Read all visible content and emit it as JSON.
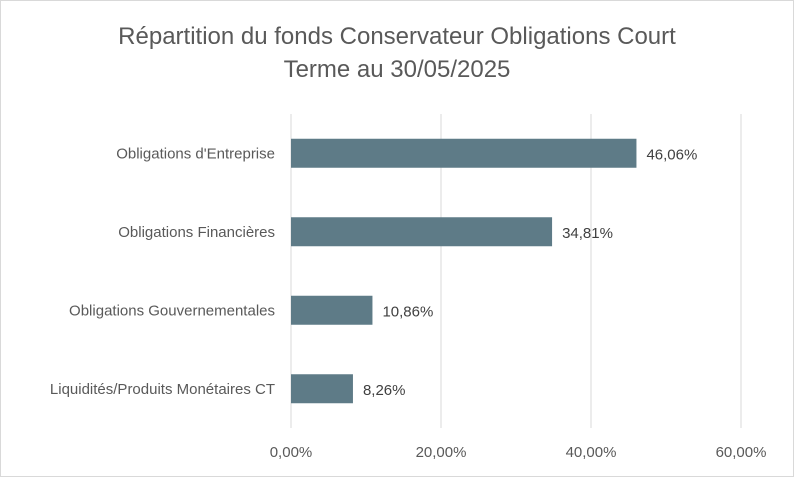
{
  "chart_data": {
    "type": "bar",
    "orientation": "horizontal",
    "title_lines": [
      "Répartition du fonds Conservateur Obligations Court",
      "Terme au 30/05/2025"
    ],
    "categories": [
      "Obligations d'Entreprise",
      "Obligations Financières",
      "Obligations Gouvernementales",
      "Liquidités/Produits Monétaires CT"
    ],
    "values": [
      46.06,
      34.81,
      10.86,
      8.26
    ],
    "value_labels": [
      "46,06%",
      "34,81%",
      "10,86%",
      "8,26%"
    ],
    "xlim": [
      0,
      60
    ],
    "xticks": [
      0,
      20,
      40,
      60
    ],
    "xtick_labels": [
      "0,00%",
      "20,00%",
      "40,00%",
      "60,00%"
    ],
    "grid": "vertical",
    "legend": "none",
    "bar_color": "#5e7b87"
  }
}
